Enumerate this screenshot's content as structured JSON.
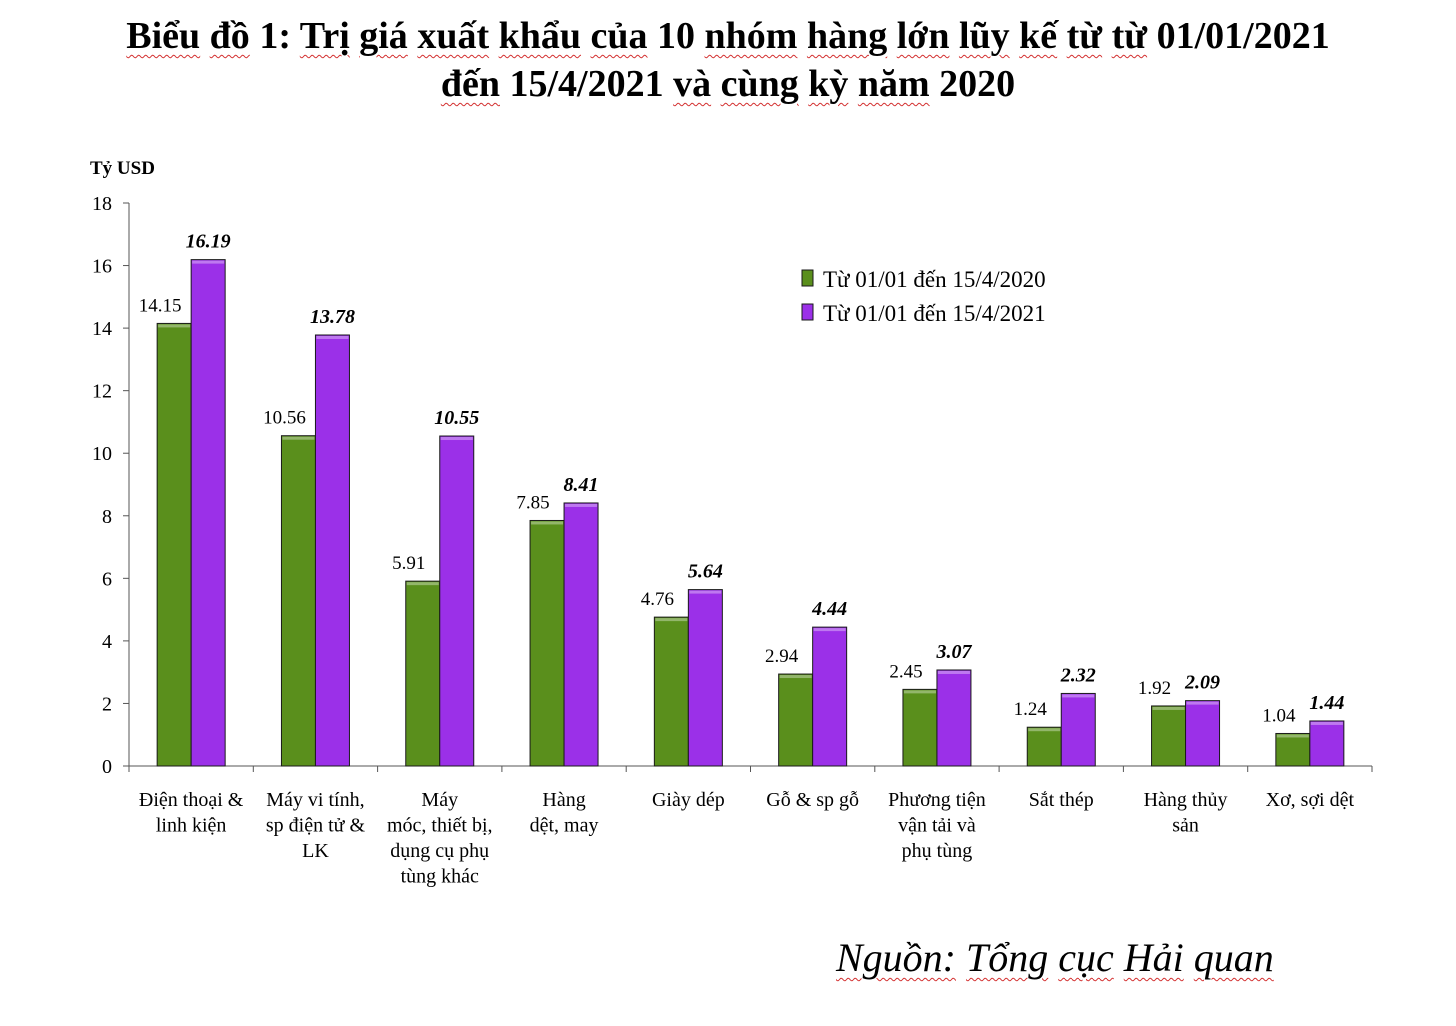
{
  "title": {
    "line1_words": [
      "Biểu",
      "đồ",
      "1:",
      "Trị",
      "giá",
      "xuất",
      "khẩu",
      "của",
      "10",
      "nhóm",
      "hàng",
      "lớn",
      "lũy",
      "kế",
      "từ",
      "từ",
      "01/01/2021"
    ],
    "line2_words": [
      "đến",
      "15/4/2021",
      "và",
      "cùng",
      "kỳ",
      "năm",
      "2020"
    ]
  },
  "source_words": [
    "Nguồn:",
    "Tổng",
    "cục",
    "Hải",
    "quan"
  ],
  "chart_data": {
    "type": "bar",
    "ylabel": "Tỷ USD",
    "ylim": [
      0,
      18
    ],
    "yticks": [
      0,
      2,
      4,
      6,
      8,
      10,
      12,
      14,
      16,
      18
    ],
    "legend_position": "top-right",
    "categories": [
      [
        "Điện thoại &",
        "linh kiện"
      ],
      [
        "Máy vi tính,",
        "sp điện tử &",
        "LK"
      ],
      [
        "Máy",
        "móc, thiết bị,",
        "dụng cụ phụ",
        "tùng khác"
      ],
      [
        "Hàng",
        "dệt, may"
      ],
      [
        "Giày dép"
      ],
      [
        "Gỗ & sp gỗ"
      ],
      [
        "Phương tiện",
        "vận tải và",
        "phụ tùng"
      ],
      [
        "Sắt thép"
      ],
      [
        "Hàng thủy",
        "sản"
      ],
      [
        "Xơ, sợi dệt"
      ]
    ],
    "series": [
      {
        "name": "Từ 01/01 đến 15/4/2020",
        "color": "#5a8f1c",
        "values": [
          14.15,
          10.56,
          5.91,
          7.85,
          4.76,
          2.94,
          2.45,
          1.24,
          1.92,
          1.04
        ]
      },
      {
        "name": "Từ 01/01 đến 15/4/2021",
        "color": "#9b30e8",
        "values": [
          16.19,
          13.78,
          10.55,
          8.41,
          5.64,
          4.44,
          3.07,
          2.32,
          2.09,
          1.44
        ]
      }
    ]
  }
}
